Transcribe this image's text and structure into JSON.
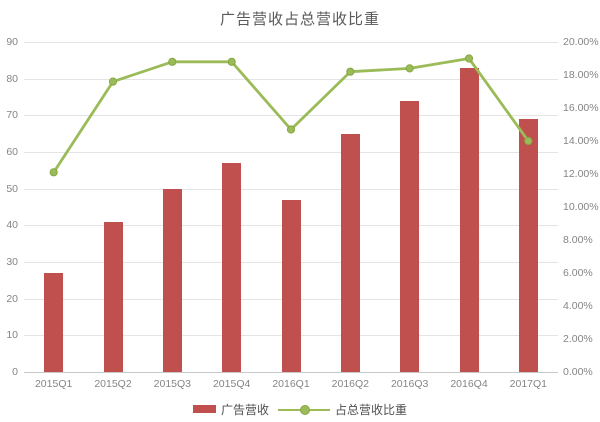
{
  "title": "广告营收占总营收比重",
  "chart_data": {
    "type": "combo",
    "categories": [
      "2015Q1",
      "2015Q2",
      "2015Q3",
      "2015Q4",
      "2016Q1",
      "2016Q2",
      "2016Q3",
      "2016Q4",
      "2017Q1"
    ],
    "series": [
      {
        "name": "广告营收",
        "type": "bar",
        "axis": "left",
        "values": [
          27,
          41,
          50,
          57,
          47,
          65,
          74,
          83,
          69
        ]
      },
      {
        "name": "占总营收比重",
        "type": "line",
        "axis": "right",
        "unit": "%",
        "values": [
          12.1,
          17.6,
          18.8,
          18.8,
          14.7,
          18.2,
          18.4,
          19.0,
          14.0
        ]
      }
    ],
    "title": "广告营收占总营收比重",
    "xlabel": "",
    "ylabel_left": "",
    "ylabel_right": "",
    "left_axis": {
      "min": 0,
      "max": 90,
      "tick_step": 10,
      "tick_labels": [
        "90",
        "80",
        "70",
        "60",
        "50",
        "40",
        "30",
        "20",
        "10",
        "0"
      ]
    },
    "right_axis": {
      "min": 0,
      "max": 20,
      "tick_step": 2,
      "tick_labels": [
        "20.00%",
        "18.00%",
        "16.00%",
        "14.00%",
        "12.00%",
        "10.00%",
        "8.00%",
        "6.00%",
        "4.00%",
        "2.00%",
        "0.00%"
      ]
    },
    "grid": true,
    "legend_position": "bottom"
  },
  "legend": {
    "items": [
      {
        "label": "广告营收",
        "marker": "bar-swatch"
      },
      {
        "label": "占总营收比重",
        "marker": "line-marker"
      }
    ]
  },
  "colors": {
    "bar": "#c0504d",
    "line": "#9bbb59",
    "marker_fill": "#9bbb59",
    "marker_edge": "#85a844",
    "gridline": "#e4e4e4",
    "axis_line": "#c9c9c9",
    "tick_text": "#858585",
    "title_text": "#595959",
    "legend_text": "#4f4f4f"
  }
}
